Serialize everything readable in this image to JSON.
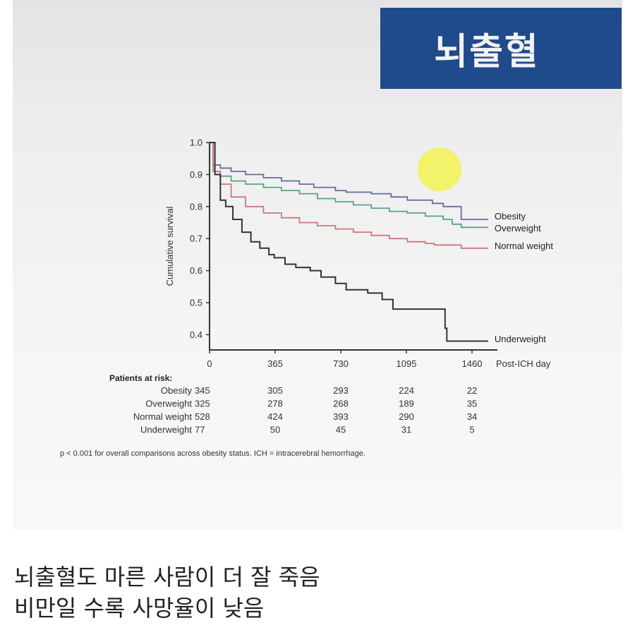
{
  "banner": {
    "title": "뇌출혈",
    "color": "#1f4a8c"
  },
  "caption": {
    "line1": "뇌출혈도 마른 사람이 더 잘 죽음",
    "line2": "비만일 수록 사망율이 낮음"
  },
  "footnote": "p < 0.001 for overall comparisons across obesity status. ICH = intracerebral hemorrhage.",
  "risk_table": {
    "title": "Patients at risk:",
    "columns": [
      "0",
      "365",
      "730",
      "1095",
      "1460"
    ],
    "rows": [
      {
        "label": "Obesity",
        "values": [
          "345",
          "305",
          "293",
          "224",
          "22"
        ]
      },
      {
        "label": "Overweight",
        "values": [
          "325",
          "278",
          "268",
          "189",
          "35"
        ]
      },
      {
        "label": "Normal weight",
        "values": [
          "528",
          "424",
          "393",
          "290",
          "34"
        ]
      },
      {
        "label": "Underweight",
        "values": [
          "77",
          "50",
          "45",
          "31",
          "5"
        ]
      }
    ]
  },
  "chart_data": {
    "type": "line",
    "title": "",
    "xlabel": "Post-ICH day",
    "ylabel": "Cumulative survival",
    "x_ticks": [
      0,
      365,
      730,
      1095,
      1460
    ],
    "y_ticks": [
      "0.4",
      "0.5",
      "0.6",
      "0.7",
      "0.8",
      "0.9",
      "1.0"
    ],
    "xlim": [
      0,
      1550
    ],
    "ylim": [
      0.35,
      1.0
    ],
    "grid": false,
    "legend_position": "right, inline at curve ends",
    "annotation": "yellow circle marker near obesity curve (~day 1290, 0.92)",
    "series": [
      {
        "name": "Obesity",
        "color": "#6b6aa0",
        "x": [
          0,
          20,
          60,
          120,
          200,
          300,
          400,
          500,
          580,
          700,
          760,
          900,
          1010,
          1100,
          1240,
          1300,
          1390,
          1400,
          1550
        ],
        "y": [
          1.0,
          0.93,
          0.92,
          0.91,
          0.9,
          0.89,
          0.88,
          0.87,
          0.86,
          0.85,
          0.845,
          0.84,
          0.83,
          0.82,
          0.81,
          0.8,
          0.8,
          0.76,
          0.76
        ]
      },
      {
        "name": "Overweight",
        "color": "#5aa47f",
        "x": [
          0,
          20,
          60,
          120,
          200,
          300,
          400,
          500,
          600,
          700,
          800,
          900,
          1000,
          1100,
          1200,
          1300,
          1350,
          1400,
          1550
        ],
        "y": [
          1.0,
          0.91,
          0.895,
          0.88,
          0.87,
          0.86,
          0.85,
          0.84,
          0.825,
          0.815,
          0.805,
          0.795,
          0.785,
          0.78,
          0.77,
          0.76,
          0.745,
          0.735,
          0.735
        ]
      },
      {
        "name": "Normal weight",
        "color": "#c97a7e",
        "x": [
          0,
          20,
          60,
          120,
          200,
          300,
          400,
          500,
          600,
          700,
          800,
          900,
          1000,
          1100,
          1200,
          1250,
          1300,
          1400,
          1550
        ],
        "y": [
          1.0,
          0.91,
          0.87,
          0.83,
          0.8,
          0.78,
          0.765,
          0.75,
          0.74,
          0.73,
          0.72,
          0.71,
          0.7,
          0.69,
          0.685,
          0.68,
          0.68,
          0.67,
          0.67
        ]
      },
      {
        "name": "Underweight",
        "color": "#333333",
        "x": [
          0,
          30,
          60,
          90,
          130,
          180,
          230,
          280,
          330,
          360,
          420,
          480,
          560,
          620,
          700,
          760,
          880,
          960,
          1020,
          1100,
          1240,
          1310,
          1320,
          1550
        ],
        "y": [
          1.0,
          0.9,
          0.82,
          0.8,
          0.76,
          0.72,
          0.69,
          0.67,
          0.65,
          0.64,
          0.62,
          0.61,
          0.6,
          0.58,
          0.56,
          0.54,
          0.53,
          0.51,
          0.48,
          0.48,
          0.48,
          0.42,
          0.38,
          0.38
        ]
      }
    ]
  }
}
